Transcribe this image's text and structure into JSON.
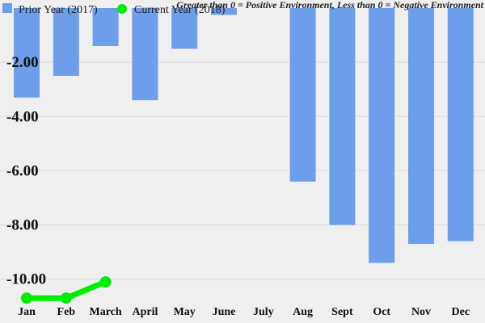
{
  "chart_data": {
    "type": "bar",
    "categories": [
      "Jan",
      "Feb",
      "March",
      "April",
      "May",
      "June",
      "July",
      "Aug",
      "Sept",
      "Oct",
      "Nov",
      "Dec"
    ],
    "ylim": [
      -11.2,
      0
    ],
    "y_ticks": [
      {
        "value": -2,
        "label": "-2.00"
      },
      {
        "value": -4,
        "label": "-4.00"
      },
      {
        "value": -6,
        "label": "-6.00"
      },
      {
        "value": -8,
        "label": "-8.00"
      },
      {
        "value": -10,
        "label": "-10.00"
      }
    ],
    "grid": true,
    "legend_position": "top-left",
    "annotation": "Greater than 0 = Positive Environment, Less than 0 = Negative Environment",
    "series": [
      {
        "name": "Prior Year (2017)",
        "type": "bar",
        "color": "#6d9eeb",
        "values": [
          -3.3,
          -2.5,
          -1.4,
          -3.4,
          -1.5,
          -0.25,
          null,
          -6.4,
          -8.0,
          -9.4,
          -8.7,
          -8.6
        ]
      },
      {
        "name": "Current Year (2018)",
        "type": "line",
        "color": "#00ee00",
        "values": [
          -10.7,
          -10.7,
          -10.1,
          null,
          null,
          null,
          null,
          null,
          null,
          null,
          null,
          null
        ]
      }
    ]
  }
}
